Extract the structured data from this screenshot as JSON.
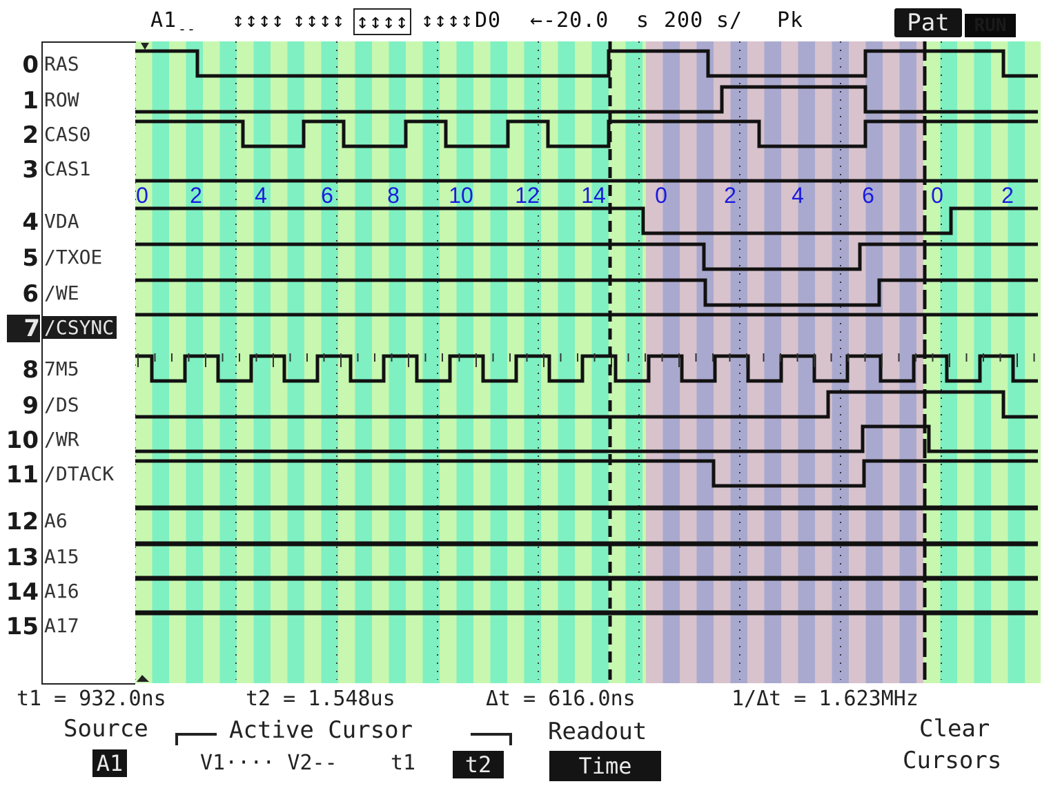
{
  "status_bar": {
    "channel": "A1",
    "pods": [
      "↕↕↕↕",
      "↕↕↕↕",
      "↕↕↕↕",
      "↕↕↕↕"
    ],
    "pod_suffix": "D0",
    "delay": "←-20.0",
    "delay_unit": "s",
    "timebase": "200",
    "timebase_unit": "s/",
    "peak": "Pk",
    "mode": "Pat",
    "run_state": "RUN"
  },
  "channels": [
    {
      "num": "0",
      "name": "RAS"
    },
    {
      "num": "1",
      "name": "ROW"
    },
    {
      "num": "2",
      "name": "CAS0"
    },
    {
      "num": "3",
      "name": "CAS1"
    },
    {
      "num": "4",
      "name": "VDA"
    },
    {
      "num": "5",
      "name": "/TXOE"
    },
    {
      "num": "6",
      "name": "/WE"
    },
    {
      "num": "7",
      "name": "/CSYNC"
    },
    {
      "num": "8",
      "name": "7M5"
    },
    {
      "num": "9",
      "name": "/DS"
    },
    {
      "num": "10",
      "name": "/WR"
    },
    {
      "num": "11",
      "name": "/DTACK"
    },
    {
      "num": "12",
      "name": "A6"
    },
    {
      "num": "13",
      "name": "A15"
    },
    {
      "num": "14",
      "name": "A16"
    },
    {
      "num": "15",
      "name": "A17"
    }
  ],
  "cycle_labels": [
    "0",
    "2",
    "4",
    "6",
    "8",
    "10",
    "12",
    "14",
    "0",
    "2",
    "4",
    "6",
    "0",
    "2"
  ],
  "colors": {
    "band_light": "#c8f7b0",
    "band_dark": "#7ff0c2",
    "band_pink": "#d8c2cc",
    "band_violet": "#a9a9cf",
    "cycle_label": "#1a1adf",
    "trace": "#111111"
  },
  "cursor_readout": {
    "t1": "t1 = 932.0ns",
    "t2": "t2 = 1.548us",
    "dt": "Δt = 616.0ns",
    "inv_dt": "1/Δt = 1.623MHz"
  },
  "softkeys": {
    "source_label": "Source",
    "source_value": "A1",
    "active_cursor_label": "Active Cursor",
    "v_options": "V1···· V2--",
    "t1_option": "t1",
    "t2_option": "t2",
    "readout_label": "Readout",
    "readout_value": "Time",
    "clear_label_1": "Clear",
    "clear_label_2": "Cursors"
  }
}
